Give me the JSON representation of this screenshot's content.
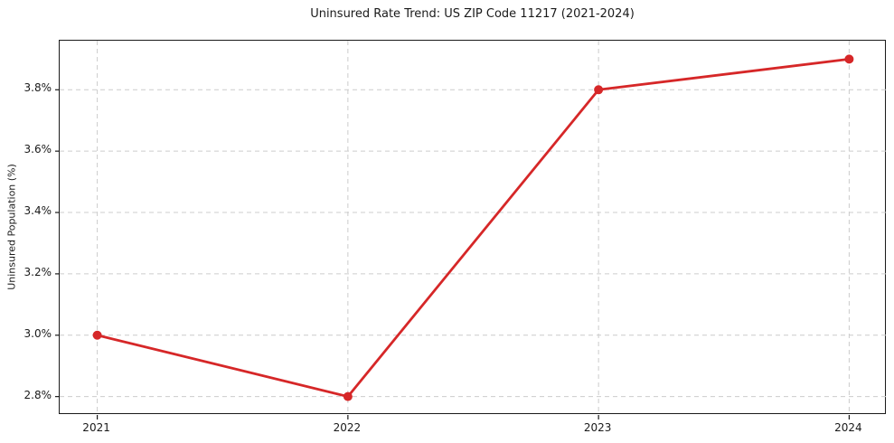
{
  "chart_data": {
    "type": "line",
    "title": "Uninsured Rate Trend: US ZIP Code 11217 (2021-2024)",
    "xlabel": "",
    "ylabel": "Uninsured Population (%)",
    "x": [
      2021,
      2022,
      2023,
      2024
    ],
    "series": [
      {
        "name": "Uninsured Population (%)",
        "values": [
          3.0,
          2.8,
          3.8,
          3.9
        ],
        "color": "#d62728",
        "marker": "circle",
        "marker_radius": 5
      }
    ],
    "xticks": {
      "values": [
        2021,
        2022,
        2023,
        2024
      ],
      "labels": [
        "2021",
        "2022",
        "2023",
        "2024"
      ]
    },
    "yticks": {
      "values": [
        2.8,
        3.0,
        3.2,
        3.4,
        3.6,
        3.8
      ],
      "labels": [
        "2.8%",
        "3.0%",
        "3.2%",
        "3.4%",
        "3.6%",
        "3.8%"
      ]
    },
    "xlim": [
      2020.85,
      2024.15
    ],
    "ylim": [
      2.74,
      3.96
    ],
    "grid": true,
    "legend": "none"
  },
  "style": {
    "grid_color": "#cccccc",
    "spine_color": "#1a1a1a",
    "text_color": "#1a1a1a",
    "background": "#ffffff"
  }
}
